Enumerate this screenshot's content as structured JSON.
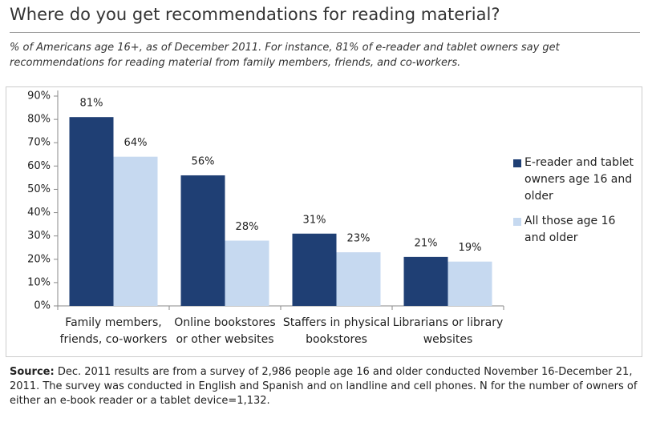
{
  "chart_data": {
    "type": "bar",
    "title": "Where do you get recommendations for reading material?",
    "subtitle": "% of Americans age 16+, as of December 2011. For instance, 81% of e-reader and tablet owners say get recommendations for reading material from family members, friends, and co-workers.",
    "categories": [
      "Family members, friends, co-workers",
      "Online bookstores or other websites",
      "Staffers in physical bookstores",
      "Librarians or library websites"
    ],
    "series": [
      {
        "name": "E-reader and tablet owners age 16 and older",
        "color": "#1f3f74",
        "values": [
          81,
          56,
          31,
          21
        ],
        "value_labels": [
          "81%",
          "56%",
          "31%",
          "21%"
        ]
      },
      {
        "name": "All those age 16 and older",
        "color": "#c6d9f0",
        "values": [
          64,
          28,
          23,
          19
        ],
        "value_labels": [
          "64%",
          "28%",
          "23%",
          "19%"
        ]
      }
    ],
    "ylim": [
      0,
      90
    ],
    "yticks": [
      {
        "value": 0,
        "label": "0%"
      },
      {
        "value": 10,
        "label": "10%"
      },
      {
        "value": 20,
        "label": "20%"
      },
      {
        "value": 30,
        "label": "30%"
      },
      {
        "value": 40,
        "label": "40%"
      },
      {
        "value": 50,
        "label": "50%"
      },
      {
        "value": 60,
        "label": "60%"
      },
      {
        "value": 70,
        "label": "70%"
      },
      {
        "value": 80,
        "label": "80%"
      },
      {
        "value": 90,
        "label": "90%"
      }
    ],
    "grid": false,
    "legend": "right",
    "source_label": "Source:",
    "source": "Dec. 2011 results are from a survey of 2,986 people age 16 and older conducted November 16-December 21, 2011. The survey was conducted in English and Spanish and on landline and cell phones. N for the number of owners of either an e-book reader or a tablet device=1,132."
  }
}
